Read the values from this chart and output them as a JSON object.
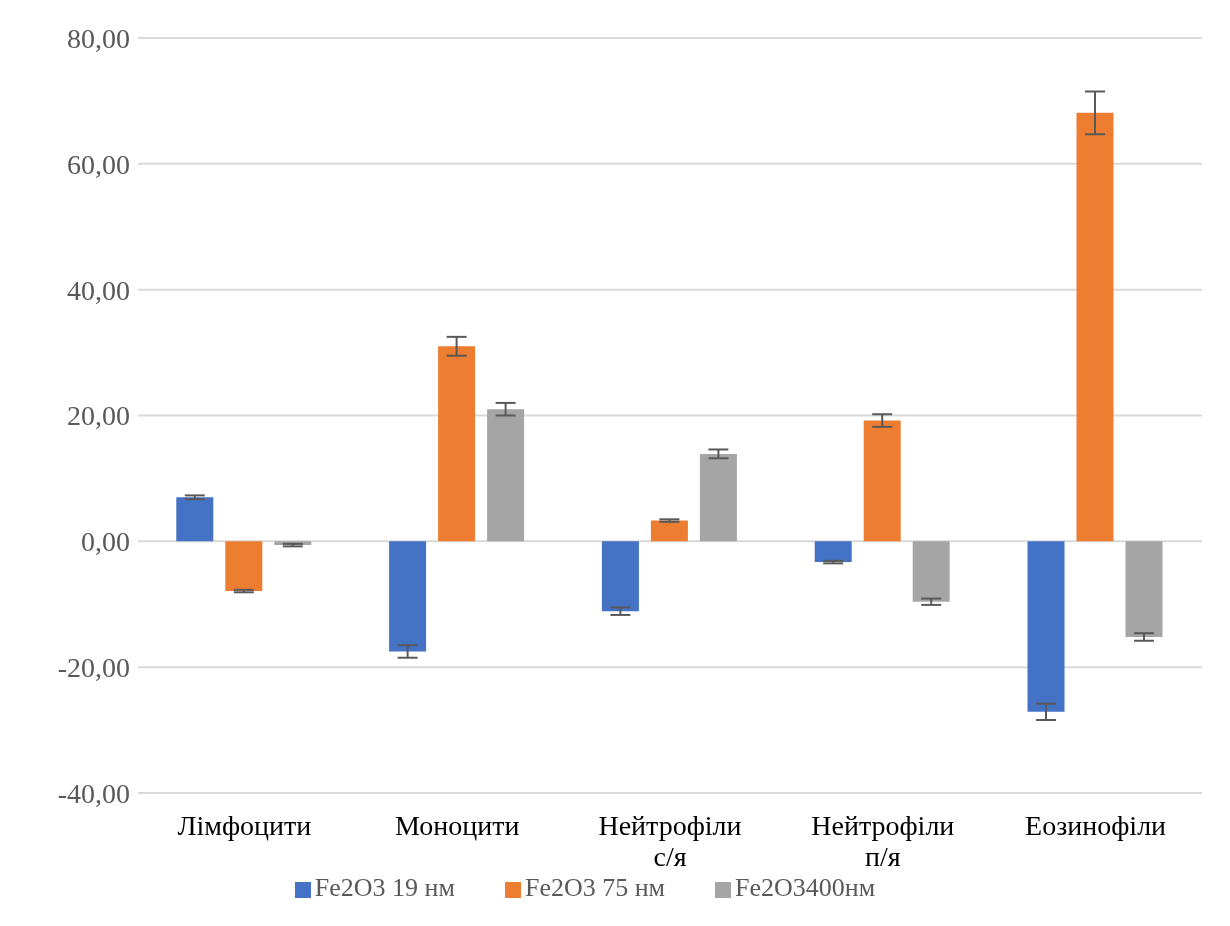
{
  "chart_data": {
    "type": "bar",
    "categories": [
      "Лімфоцити",
      "Моноцити",
      "Нейтрофіли с/я",
      "Нейтрофіли п/я",
      "Еозинофіли"
    ],
    "series": [
      {
        "name": "Fe2O3  19 нм",
        "color": "#4472c4",
        "values": [
          7.0,
          -17.5,
          -11.1,
          -3.3,
          -27.1
        ],
        "errors": [
          0.3,
          1.0,
          0.6,
          0.2,
          1.3
        ]
      },
      {
        "name": "Fe2O3  75 нм",
        "color": "#ed7d31",
        "values": [
          -7.9,
          31.0,
          3.3,
          19.2,
          68.1
        ],
        "errors": [
          0.2,
          1.5,
          0.2,
          1.0,
          3.4
        ]
      },
      {
        "name": "Fe2O3400нм",
        "color": "#a5a5a5",
        "values": [
          -0.6,
          21.0,
          13.9,
          -9.6,
          -15.2
        ],
        "errors": [
          0.2,
          1.0,
          0.7,
          0.5,
          0.6
        ]
      }
    ],
    "ylim": [
      -40,
      80
    ],
    "yticks": [
      {
        "value": -40,
        "label": "-40,00"
      },
      {
        "value": -20,
        "label": "-20,00"
      },
      {
        "value": 0,
        "label": "0,00"
      },
      {
        "value": 20,
        "label": "20,00"
      },
      {
        "value": 40,
        "label": "40,00"
      },
      {
        "value": 60,
        "label": "60,00"
      },
      {
        "value": 80,
        "label": "80,00"
      }
    ],
    "grid": "y",
    "legend": "bottom"
  }
}
